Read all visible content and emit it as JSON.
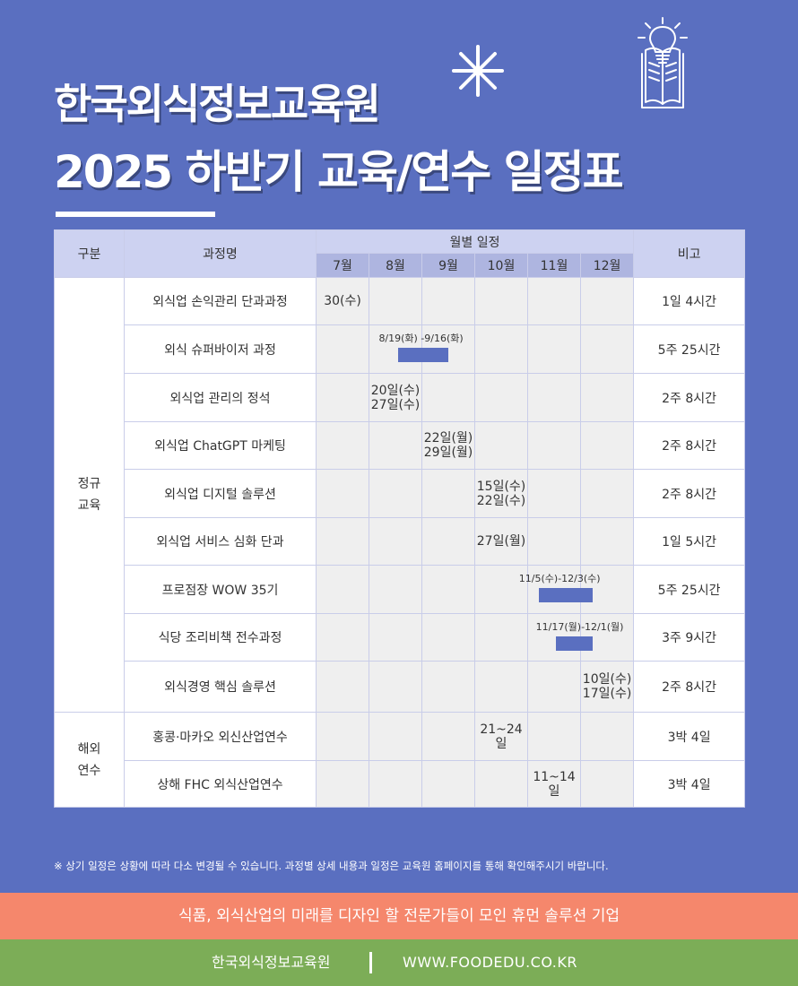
{
  "header": {
    "title_line1": "한국외식정보교육원",
    "title_line2": "2025 하반기 교육/연수 일정표"
  },
  "table": {
    "headers": {
      "category": "구분",
      "course": "과정명",
      "monthly": "월별 일정",
      "note": "비고",
      "months": [
        "7월",
        "8월",
        "9월",
        "10월",
        "11월",
        "12월"
      ]
    },
    "groups": [
      {
        "category": "정규\n교육",
        "rows": [
          {
            "course": "외식업 손익관리 단과과정",
            "schedule": [
              {
                "month": 0,
                "text": "30(수)"
              }
            ],
            "note": "1일 4시간"
          },
          {
            "course": "외식 슈퍼바이저 과정",
            "bar": {
              "label": "8/19(화) -9/16(화)",
              "start": 1.55,
              "end": 2.5
            },
            "note": "5주 25시간"
          },
          {
            "course": "외식업 관리의 정석",
            "schedule": [
              {
                "month": 1,
                "text": "20일(수)\n27일(수)"
              }
            ],
            "note": "2주 8시간"
          },
          {
            "course": "외식업 ChatGPT 마케팅",
            "schedule": [
              {
                "month": 2,
                "text": "22일(월)\n29일(월)"
              }
            ],
            "note": "2주 8시간"
          },
          {
            "course": "외식업 디지털 솔루션",
            "schedule": [
              {
                "month": 3,
                "text": "15일(수)\n22일(수)"
              }
            ],
            "note": "2주 8시간"
          },
          {
            "course": "외식업 서비스 심화 단과",
            "schedule": [
              {
                "month": 3,
                "text": "27일(월)"
              }
            ],
            "note": "1일 5시간"
          },
          {
            "course": "프로점장 WOW 35기",
            "bar": {
              "label": "11/5(수)-12/3(수)",
              "start": 4.2,
              "end": 5.22
            },
            "note": "5주 25시간"
          },
          {
            "course": "식당 조리비책 전수과정",
            "bar": {
              "label": "11/17(월)-12/1(월)",
              "start": 4.52,
              "end": 5.22
            },
            "note": "3주 9시간"
          },
          {
            "course": "외식경영 핵심 솔루션",
            "schedule": [
              {
                "month": 5,
                "text": "10일(수)\n17일(수)"
              }
            ],
            "note": "2주 8시간"
          }
        ]
      },
      {
        "category": "해외\n연수",
        "rows": [
          {
            "course": "홍콩·마카오 외신산업연수",
            "schedule": [
              {
                "month": 3,
                "text": "21~24일"
              }
            ],
            "note": "3박 4일"
          },
          {
            "course": "상해 FHC 외식산업연수",
            "schedule": [
              {
                "month": 4,
                "text": "11~14일"
              }
            ],
            "note": "3박 4일"
          }
        ]
      }
    ]
  },
  "footnote": "※ 상기 일정은 상황에 따라 다소 변경될 수 있습니다. 과정별 상세 내용과 일정은 교육원 홈페이지를 통해 확인해주시기 바랍니다.",
  "slogan": "식품, 외식산업의 미래를 디자인 할 전문가들이 모인 휴먼 솔루션 기업",
  "footer": {
    "org": "한국외식정보교육원",
    "url": "WWW.FOODEDU.CO.KR"
  },
  "colors": {
    "background": "#5a6fc0",
    "header_cell": "#cdd2f1",
    "month_cell": "#aeb5e0",
    "bar": "#5a6fc0",
    "slogan_band": "#f5876c",
    "footer_band": "#7cad57"
  },
  "icons": {
    "decoration": "asterisk-icon",
    "book": "open-book-lightbulb-icon"
  }
}
